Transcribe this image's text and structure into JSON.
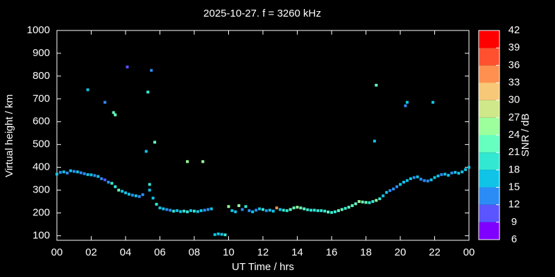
{
  "chart_data": {
    "type": "scatter",
    "title": "2025-10-27. f = 3260 kHz",
    "x_label": "UT Time / hrs",
    "y_label": "Virtual height / km",
    "xlim": [
      0,
      24
    ],
    "xticks": [
      {
        "value": 0,
        "label": "00"
      },
      {
        "value": 2,
        "label": "02"
      },
      {
        "value": 4,
        "label": "04"
      },
      {
        "value": 6,
        "label": "06"
      },
      {
        "value": 8,
        "label": "08"
      },
      10,
      12,
      14,
      16,
      18,
      20,
      22,
      {
        "value": 24,
        "label": "00"
      }
    ],
    "ylim": [
      80,
      1000
    ],
    "yticks": [
      100,
      200,
      300,
      400,
      500,
      600,
      700,
      800,
      900,
      1000
    ],
    "colorbar": {
      "label": "SNR / dB",
      "ticks": [
        6,
        9,
        12,
        15,
        18,
        21,
        24,
        27,
        30,
        33,
        36,
        39,
        42
      ],
      "colors": [
        "#8000ff",
        "#5a55ff",
        "#2c8cf5",
        "#10c4e8",
        "#32e8d2",
        "#66ffc0",
        "#9cff9c",
        "#cfe88a",
        "#f7c878",
        "#ff9050",
        "#ff5030",
        "#ff0000"
      ]
    },
    "x": [
      0.0,
      0.2,
      0.4,
      0.6,
      0.8,
      1.0,
      1.2,
      1.4,
      1.6,
      1.8,
      2.0,
      2.2,
      2.4,
      2.6,
      2.8,
      3.0,
      3.2,
      3.4,
      3.6,
      3.8,
      4.0,
      4.2,
      4.4,
      4.6,
      4.8,
      5.0,
      5.4,
      5.6,
      5.8,
      6.0,
      6.2,
      6.4,
      6.6,
      6.8,
      7.0,
      7.2,
      7.4,
      7.6,
      7.8,
      8.0,
      8.2,
      8.4,
      8.6,
      8.8,
      9.0,
      9.2,
      9.4,
      9.6,
      9.8,
      10.0,
      10.2,
      10.4,
      10.6,
      10.8,
      11.0,
      11.2,
      11.4,
      11.6,
      11.8,
      12.0,
      12.2,
      12.4,
      12.6,
      12.8,
      13.0,
      13.2,
      13.4,
      13.6,
      13.8,
      14.0,
      14.2,
      14.4,
      14.6,
      14.8,
      15.0,
      15.2,
      15.4,
      15.6,
      15.8,
      16.0,
      16.2,
      16.4,
      16.6,
      16.8,
      17.0,
      17.2,
      17.4,
      17.6,
      17.8,
      18.0,
      18.2,
      18.4,
      18.6,
      18.8,
      19.0,
      19.2,
      19.4,
      19.6,
      19.8,
      20.0,
      20.2,
      20.4,
      20.6,
      20.8,
      21.0,
      21.2,
      21.4,
      21.6,
      21.8,
      22.0,
      22.2,
      22.4,
      22.6,
      22.8,
      23.0,
      23.2,
      23.4,
      23.6,
      23.8,
      24.0,
      1.8,
      2.8,
      3.3,
      3.4,
      4.1,
      5.3,
      5.5,
      5.2,
      5.7,
      5.4,
      7.6,
      8.5,
      18.6,
      18.5,
      20.3,
      20.4,
      21.9
    ],
    "y": [
      370,
      378,
      380,
      375,
      385,
      382,
      380,
      376,
      372,
      368,
      367,
      364,
      360,
      350,
      345,
      335,
      330,
      315,
      300,
      295,
      288,
      282,
      278,
      275,
      272,
      280,
      300,
      265,
      238,
      222,
      218,
      215,
      212,
      208,
      210,
      206,
      208,
      205,
      210,
      208,
      206,
      210,
      212,
      215,
      218,
      105,
      108,
      106,
      104,
      228,
      210,
      205,
      232,
      215,
      228,
      210,
      205,
      212,
      218,
      215,
      210,
      212,
      208,
      222,
      215,
      212,
      210,
      215,
      222,
      225,
      222,
      218,
      214,
      212,
      212,
      210,
      210,
      208,
      204,
      202,
      205,
      210,
      215,
      220,
      225,
      232,
      240,
      250,
      248,
      246,
      245,
      250,
      255,
      262,
      275,
      290,
      298,
      305,
      315,
      325,
      335,
      342,
      350,
      355,
      358,
      348,
      342,
      340,
      345,
      355,
      362,
      368,
      370,
      365,
      375,
      378,
      374,
      380,
      390,
      400,
      740,
      685,
      640,
      630,
      840,
      730,
      825,
      470,
      510,
      325,
      425,
      425,
      760,
      515,
      670,
      685,
      685
    ],
    "snr": [
      15,
      14,
      16,
      13,
      15,
      14,
      16,
      13,
      14,
      15,
      17,
      14,
      16,
      12,
      10,
      14,
      18,
      20,
      21,
      16,
      17,
      15,
      13,
      17,
      14,
      12,
      15,
      17,
      20,
      16,
      15,
      14,
      13,
      18,
      17,
      16,
      20,
      19,
      16,
      18,
      15,
      17,
      14,
      13,
      15,
      16,
      17,
      16,
      18,
      25,
      16,
      15,
      24,
      13,
      20,
      14,
      15,
      13,
      17,
      20,
      14,
      16,
      17,
      33,
      17,
      19,
      20,
      21,
      23,
      24,
      22,
      21,
      20,
      19,
      20,
      19,
      18,
      20,
      21,
      20,
      19,
      22,
      21,
      20,
      21,
      22,
      23,
      24,
      22,
      21,
      20,
      19,
      24,
      18,
      17,
      15,
      14,
      12,
      13,
      16,
      17,
      15,
      16,
      14,
      15,
      14,
      13,
      14,
      15,
      16,
      15,
      14,
      15,
      16,
      14,
      17,
      16,
      15,
      15,
      17,
      17,
      12,
      21,
      22,
      11,
      18,
      13,
      15,
      22,
      20,
      24,
      25,
      21,
      15,
      14,
      16,
      15
    ]
  }
}
